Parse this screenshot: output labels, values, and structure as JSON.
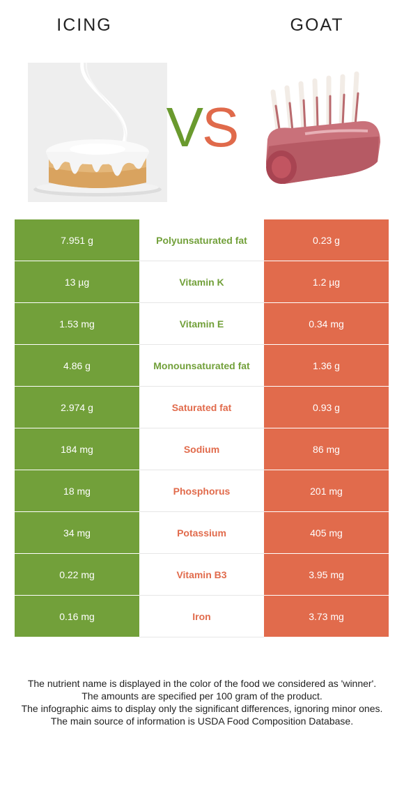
{
  "header": {
    "left_name": "ICING",
    "right_name": "GOAT",
    "vs_v": "V",
    "vs_s": "S"
  },
  "colors": {
    "winner_left": "#72a03a",
    "winner_right": "#e16b4c"
  },
  "rows": [
    {
      "left": "7.951 g",
      "nutrient": "Polyunsaturated fat",
      "right": "0.23 g",
      "winner": "left"
    },
    {
      "left": "13 µg",
      "nutrient": "Vitamin K",
      "right": "1.2 µg",
      "winner": "left"
    },
    {
      "left": "1.53 mg",
      "nutrient": "Vitamin E",
      "right": "0.34 mg",
      "winner": "left"
    },
    {
      "left": "4.86 g",
      "nutrient": "Monounsaturated fat",
      "right": "1.36 g",
      "winner": "left"
    },
    {
      "left": "2.974 g",
      "nutrient": "Saturated fat",
      "right": "0.93 g",
      "winner": "right"
    },
    {
      "left": "184 mg",
      "nutrient": "Sodium",
      "right": "86 mg",
      "winner": "right"
    },
    {
      "left": "18 mg",
      "nutrient": "Phosphorus",
      "right": "201 mg",
      "winner": "right"
    },
    {
      "left": "34 mg",
      "nutrient": "Potassium",
      "right": "405 mg",
      "winner": "right"
    },
    {
      "left": "0.22 mg",
      "nutrient": "Vitamin B3",
      "right": "3.95 mg",
      "winner": "right"
    },
    {
      "left": "0.16 mg",
      "nutrient": "Iron",
      "right": "3.73 mg",
      "winner": "right"
    }
  ],
  "footer": {
    "line1": "The nutrient name is displayed in the color of the food we considered as 'winner'.",
    "line2": "The amounts are specified per 100 gram of the product.",
    "line3": "The infographic aims to display only the significant differences, ignoring minor ones.",
    "line4": "The main source of information is USDA Food Composition Database."
  }
}
